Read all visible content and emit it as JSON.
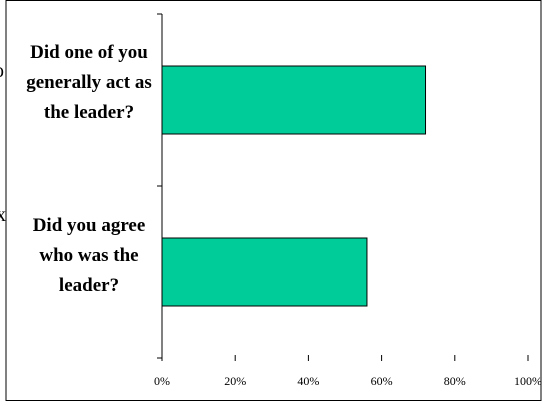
{
  "chart_data": {
    "type": "bar",
    "orientation": "horizontal",
    "categories": [
      "Did one of you generally act as the leader?",
      "Did you agree who was the leader?"
    ],
    "values": [
      72,
      56
    ],
    "xlim": [
      0,
      100
    ],
    "xticks": [
      "0%",
      "20%",
      "40%",
      "60%",
      "80%",
      "100%"
    ],
    "bar_color": "#00CC99",
    "grid": false,
    "legend": "none"
  },
  "edge_glyphs": [
    "o",
    "x"
  ]
}
